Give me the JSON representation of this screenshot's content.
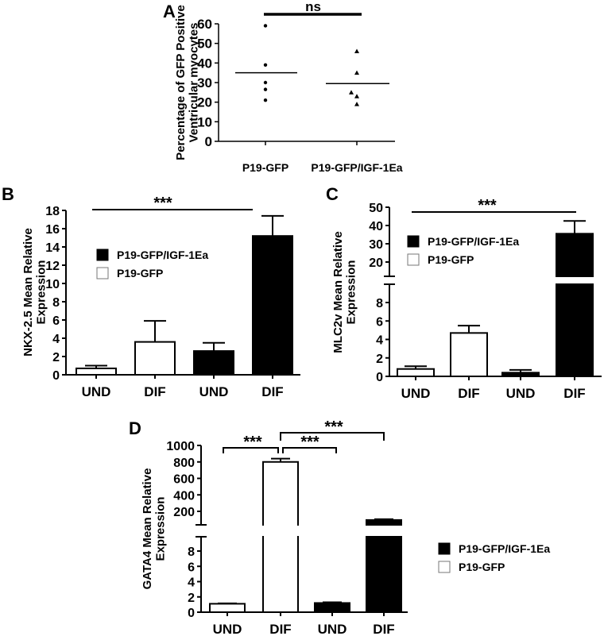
{
  "figure": {
    "panel_letters": [
      "A",
      "B",
      "C",
      "D"
    ]
  },
  "chart_data": [
    {
      "panel": "A",
      "type": "scatter",
      "title": "",
      "xlabel": "",
      "ylabel": "Percentage of GFP Positive Ventricular myocytes",
      "ylabel_lines": [
        "Percentage of GFP Positive",
        "Ventricular myocytes"
      ],
      "ylim": [
        0,
        60
      ],
      "yticks": [
        0,
        10,
        20,
        30,
        40,
        50,
        60
      ],
      "categories": [
        "P19-GFP",
        "P19-GFP/IGF-1Ea"
      ],
      "series": [
        {
          "name": "P19-GFP",
          "marker": "circle",
          "values": [
            59,
            39,
            30,
            26.5,
            21
          ],
          "mean": 35
        },
        {
          "name": "P19-GFP/IGF-1Ea",
          "marker": "triangle",
          "values": [
            46,
            35,
            25,
            23,
            19
          ],
          "mean": 29.5
        }
      ],
      "annotations": [
        {
          "text": "ns",
          "between": [
            "P19-GFP",
            "P19-GFP/IGF-1Ea"
          ]
        }
      ]
    },
    {
      "panel": "B",
      "type": "bar",
      "ylabel": "NKX-2.5 Mean Relative Expression",
      "ylabel_lines": [
        "NKX-2.5 Mean Relative",
        "Expression"
      ],
      "ylim": [
        0,
        18
      ],
      "yticks": [
        0,
        2,
        4,
        6,
        8,
        10,
        12,
        14,
        16,
        18
      ],
      "categories": [
        "UND",
        "DIF",
        "UND",
        "DIF"
      ],
      "groups": [
        "P19-GFP",
        "P19-GFP",
        "P19-GFP/IGF-1Ea",
        "P19-GFP/IGF-1Ea"
      ],
      "values": [
        0.7,
        3.6,
        2.6,
        15.2
      ],
      "errors": [
        0.3,
        2.3,
        0.9,
        2.2
      ],
      "legend": [
        {
          "label": "P19-GFP/IGF-1Ea",
          "fill": "#000000"
        },
        {
          "label": "P19-GFP",
          "fill": "#ffffff"
        }
      ],
      "annotations": [
        {
          "text": "***",
          "from": 0,
          "to": 3
        }
      ]
    },
    {
      "panel": "C",
      "type": "bar",
      "ylabel": "MLC2v Mean Relative Expression",
      "ylabel_lines": [
        "MLC2v Mean Relative",
        "Expression"
      ],
      "axis_break": true,
      "yticks_lower": [
        0,
        2,
        4,
        6,
        8
      ],
      "yticks_upper": [
        20,
        30,
        40,
        50
      ],
      "categories": [
        "UND",
        "DIF",
        "UND",
        "DIF"
      ],
      "groups": [
        "P19-GFP",
        "P19-GFP",
        "P19-GFP/IGF-1Ea",
        "P19-GFP/IGF-1Ea"
      ],
      "values": [
        0.8,
        4.7,
        0.4,
        35.5
      ],
      "errors": [
        0.3,
        0.8,
        0.3,
        7.0
      ],
      "legend": [
        {
          "label": "P19-GFP/IGF-1Ea",
          "fill": "#000000"
        },
        {
          "label": "P19-GFP",
          "fill": "#ffffff"
        }
      ],
      "annotations": [
        {
          "text": "***",
          "from": 0,
          "to": 3
        }
      ]
    },
    {
      "panel": "D",
      "type": "bar",
      "ylabel": "GATA4 Mean Relative Expression",
      "ylabel_lines": [
        "GATA4 Mean Relative",
        "Expression"
      ],
      "axis_break": true,
      "yticks_lower": [
        0,
        2,
        4,
        6,
        8
      ],
      "yticks_upper": [
        200,
        400,
        600,
        800,
        1000
      ],
      "categories": [
        "UND",
        "DIF",
        "UND",
        "DIF"
      ],
      "groups": [
        "P19-GFP",
        "P19-GFP",
        "P19-GFP/IGF-1Ea",
        "P19-GFP/IGF-1Ea"
      ],
      "values": [
        1.1,
        800,
        1.2,
        95
      ],
      "errors": [
        0.05,
        40,
        0.1,
        10
      ],
      "legend": [
        {
          "label": "P19-GFP/IGF-1Ea",
          "fill": "#000000"
        },
        {
          "label": "P19-GFP",
          "fill": "#ffffff"
        }
      ],
      "annotations": [
        {
          "text": "***",
          "from": 0,
          "to": 1
        },
        {
          "text": "***",
          "from": 1,
          "to": 2
        },
        {
          "text": "***",
          "from": 1,
          "to": 3
        }
      ]
    }
  ]
}
